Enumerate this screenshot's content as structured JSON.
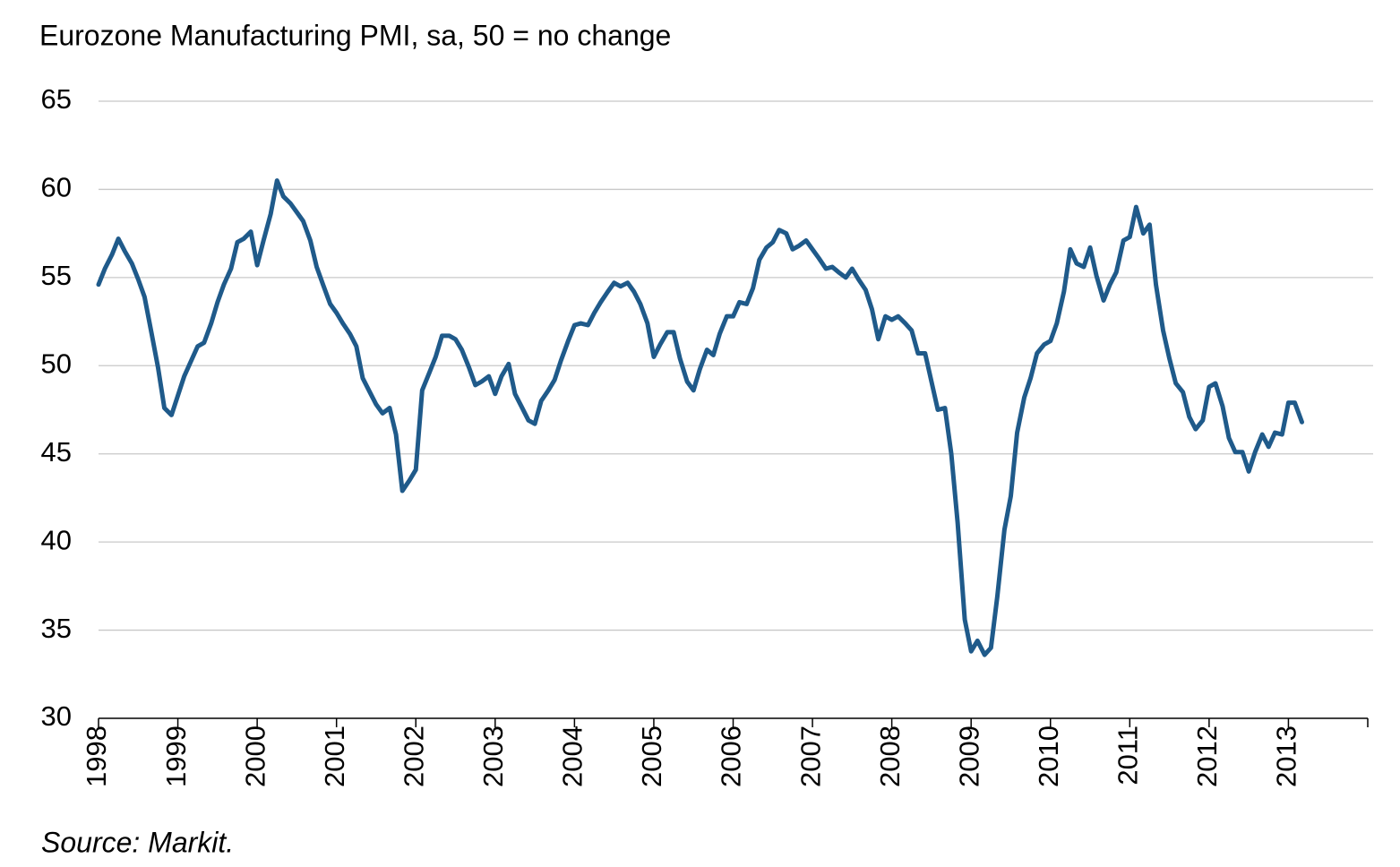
{
  "chart_data": {
    "type": "line",
    "subtitle": "Eurozone Manufacturing PMI, sa, 50 = no change",
    "source": "Source: Markit.",
    "color": "#1f5a8a",
    "grid": true,
    "ylim": [
      30,
      65
    ],
    "yticks": [
      30,
      35,
      40,
      45,
      50,
      55,
      60,
      65
    ],
    "xlim": [
      1998,
      2014
    ],
    "xticks": [
      1998,
      1999,
      2000,
      2001,
      2002,
      2003,
      2004,
      2005,
      2006,
      2007,
      2008,
      2009,
      2010,
      2011,
      2012,
      2013
    ],
    "x": [
      1998,
      1998.08,
      1998.17,
      1998.25,
      1998.33,
      1998.42,
      1998.5,
      1998.58,
      1998.67,
      1998.75,
      1998.83,
      1998.92,
      1999,
      1999.08,
      1999.17,
      1999.25,
      1999.33,
      1999.42,
      1999.5,
      1999.58,
      1999.67,
      1999.75,
      1999.83,
      1999.92,
      2000,
      2000.08,
      2000.17,
      2000.25,
      2000.33,
      2000.42,
      2000.5,
      2000.58,
      2000.67,
      2000.75,
      2000.83,
      2000.92,
      2001,
      2001.08,
      2001.17,
      2001.25,
      2001.33,
      2001.42,
      2001.5,
      2001.58,
      2001.67,
      2001.75,
      2001.83,
      2001.92,
      2002,
      2002.08,
      2002.17,
      2002.25,
      2002.33,
      2002.42,
      2002.5,
      2002.58,
      2002.67,
      2002.75,
      2002.83,
      2002.92,
      2003,
      2003.08,
      2003.17,
      2003.25,
      2003.33,
      2003.42,
      2003.5,
      2003.58,
      2003.67,
      2003.75,
      2003.83,
      2003.92,
      2004,
      2004.08,
      2004.17,
      2004.25,
      2004.33,
      2004.42,
      2004.5,
      2004.58,
      2004.67,
      2004.75,
      2004.83,
      2004.92,
      2005,
      2005.08,
      2005.17,
      2005.25,
      2005.33,
      2005.42,
      2005.5,
      2005.58,
      2005.67,
      2005.75,
      2005.83,
      2005.92,
      2006,
      2006.08,
      2006.17,
      2006.25,
      2006.33,
      2006.42,
      2006.5,
      2006.58,
      2006.67,
      2006.75,
      2006.83,
      2006.92,
      2007,
      2007.08,
      2007.17,
      2007.25,
      2007.33,
      2007.42,
      2007.5,
      2007.58,
      2007.67,
      2007.75,
      2007.83,
      2007.92,
      2008,
      2008.08,
      2008.17,
      2008.25,
      2008.33,
      2008.42,
      2008.5,
      2008.58,
      2008.67,
      2008.75,
      2008.83,
      2008.92,
      2009,
      2009.08,
      2009.17,
      2009.25,
      2009.33,
      2009.42,
      2009.5,
      2009.58,
      2009.67,
      2009.75,
      2009.83,
      2009.92,
      2010,
      2010.08,
      2010.17,
      2010.25,
      2010.33,
      2010.42,
      2010.5,
      2010.58,
      2010.67,
      2010.75,
      2010.83,
      2010.92,
      2011,
      2011.08,
      2011.17,
      2011.25,
      2011.33,
      2011.42,
      2011.5,
      2011.58,
      2011.67,
      2011.75,
      2011.83,
      2011.92,
      2012,
      2012.08,
      2012.17,
      2012.25,
      2012.33,
      2012.42,
      2012.5,
      2012.58,
      2012.67,
      2012.75,
      2012.83,
      2012.92,
      2013,
      2013.08,
      2013.17
    ],
    "values": [
      54.6,
      55.5,
      56.3,
      57.2,
      56.5,
      55.8,
      54.9,
      53.9,
      51.8,
      49.9,
      47.6,
      47.2,
      48.3,
      49.4,
      50.3,
      51.1,
      51.3,
      52.4,
      53.6,
      54.6,
      55.5,
      57.0,
      57.2,
      57.6,
      55.7,
      57.1,
      58.6,
      60.5,
      59.6,
      59.2,
      58.7,
      58.2,
      57.1,
      55.6,
      54.6,
      53.5,
      53.0,
      52.4,
      51.8,
      51.1,
      49.3,
      48.5,
      47.8,
      47.3,
      47.6,
      46.1,
      42.9,
      43.5,
      44.1,
      48.6,
      49.6,
      50.5,
      51.7,
      51.7,
      51.5,
      50.9,
      49.9,
      48.9,
      49.1,
      49.4,
      48.4,
      49.4,
      50.1,
      48.4,
      47.7,
      46.9,
      46.7,
      48.0,
      48.6,
      49.2,
      50.3,
      51.4,
      52.3,
      52.4,
      52.3,
      53.0,
      53.6,
      54.2,
      54.7,
      54.5,
      54.7,
      54.2,
      53.5,
      52.4,
      50.5,
      51.2,
      51.9,
      51.9,
      50.4,
      49.1,
      48.6,
      49.8,
      50.9,
      50.6,
      51.8,
      52.8,
      52.8,
      53.6,
      53.5,
      54.4,
      56.0,
      56.7,
      57.0,
      57.7,
      57.5,
      56.6,
      56.8,
      57.1,
      56.6,
      56.1,
      55.5,
      55.6,
      55.3,
      55.0,
      55.5,
      54.9,
      54.3,
      53.2,
      51.5,
      52.8,
      52.6,
      52.8,
      52.4,
      52.0,
      50.7,
      50.7,
      49.1,
      47.5,
      47.6,
      45.0,
      41.1,
      35.6,
      33.8,
      34.4,
      33.6,
      34.0,
      36.9,
      40.7,
      42.6,
      46.2,
      48.2,
      49.3,
      50.7,
      51.2,
      51.4,
      52.4,
      54.2,
      56.6,
      55.8,
      55.6,
      56.7,
      55.1,
      53.7,
      54.6,
      55.3,
      57.1,
      57.3,
      59.0,
      57.5,
      58.0,
      54.6,
      52.0,
      50.4,
      49.0,
      48.5,
      47.1,
      46.4,
      46.9,
      48.8,
      49.0,
      47.7,
      45.9,
      45.1,
      45.1,
      44.0,
      45.1,
      46.1,
      45.4,
      46.2,
      46.1,
      47.9,
      47.9,
      46.8
    ]
  }
}
